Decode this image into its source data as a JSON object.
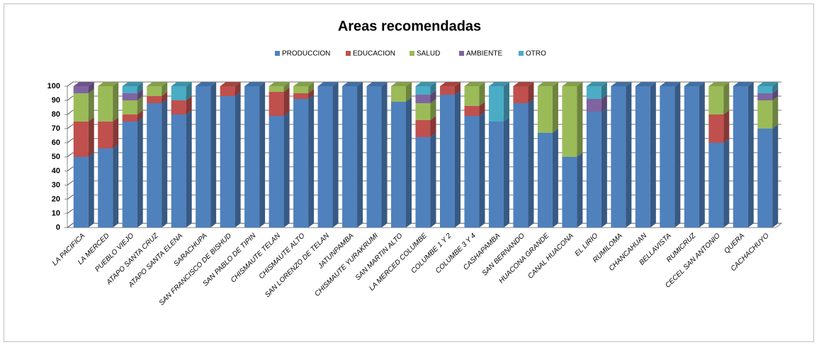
{
  "chart_data": {
    "type": "bar",
    "stacked": true,
    "title": "Areas recomendadas",
    "categories": [
      "LA PACIFICA",
      "LA MERCED",
      "PUEBLO VIEJO",
      "ATAPO SANTA CRUZ",
      "ATAPO SANTA ELENA",
      "SARACHUPA",
      "SAN FRANCISCO DE BISHUD",
      "SAN PABLO DE TIPIN",
      "CHISMAUTE TELAN",
      "CHISMAUTE ALTO",
      "SAN LORENZO DE TELAN",
      "JATUNPAMBA",
      "CHISMAUTE YURAKRUMI",
      "SAN MARTIN ALTO",
      "LA MERCED COLUMBE",
      "COLUMBE 1 Y 2",
      "COLUMBE 3 Y 4",
      "CASHAPAMBA",
      "SAN BERNANDO",
      "HUACONA GRANDE",
      "CANAL HUACONA",
      "EL LIRIO",
      "RUMILOMA",
      "CHANCAHUAN",
      "BELLAVISTA",
      "RUMICRUZ",
      "CECEL SAN ANTONIO",
      "QUERA",
      "CACHACHUYO"
    ],
    "series": [
      {
        "name": "PRODUCCION",
        "color": "#4f81bd",
        "values": [
          50,
          56,
          75,
          88,
          80,
          100,
          93,
          100,
          79,
          91,
          100,
          100,
          100,
          89,
          64,
          94,
          79,
          75,
          88,
          67,
          50,
          82,
          100,
          100,
          100,
          100,
          60,
          100,
          70
        ]
      },
      {
        "name": "EDUCACION",
        "color": "#c0504d",
        "values": [
          25,
          19,
          5,
          5,
          10,
          0,
          7,
          0,
          17,
          4,
          0,
          0,
          0,
          0,
          12,
          6,
          7,
          0,
          12,
          0,
          0,
          0,
          0,
          0,
          0,
          0,
          20,
          0,
          0
        ]
      },
      {
        "name": "SALUD",
        "color": "#9bbb59",
        "values": [
          20,
          25,
          10,
          7,
          0,
          0,
          0,
          0,
          4,
          5,
          0,
          0,
          0,
          11,
          12,
          0,
          14,
          0,
          0,
          33,
          50,
          0,
          0,
          0,
          0,
          0,
          20,
          0,
          20
        ]
      },
      {
        "name": "AMBIENTE",
        "color": "#8064a2",
        "values": [
          5,
          0,
          5,
          0,
          0,
          0,
          0,
          0,
          0,
          0,
          0,
          0,
          0,
          0,
          6,
          0,
          0,
          0,
          0,
          0,
          0,
          9,
          0,
          0,
          0,
          0,
          0,
          0,
          5
        ]
      },
      {
        "name": "OTRO",
        "color": "#4bacc6",
        "values": [
          0,
          0,
          5,
          0,
          10,
          0,
          0,
          0,
          0,
          0,
          0,
          0,
          0,
          0,
          6,
          0,
          0,
          25,
          0,
          0,
          0,
          9,
          0,
          0,
          0,
          0,
          0,
          0,
          5
        ]
      }
    ],
    "ylim": [
      0,
      100
    ],
    "yticks": [
      0,
      10,
      20,
      30,
      40,
      50,
      60,
      70,
      80,
      90,
      100
    ],
    "grid": true,
    "legend": "top"
  }
}
